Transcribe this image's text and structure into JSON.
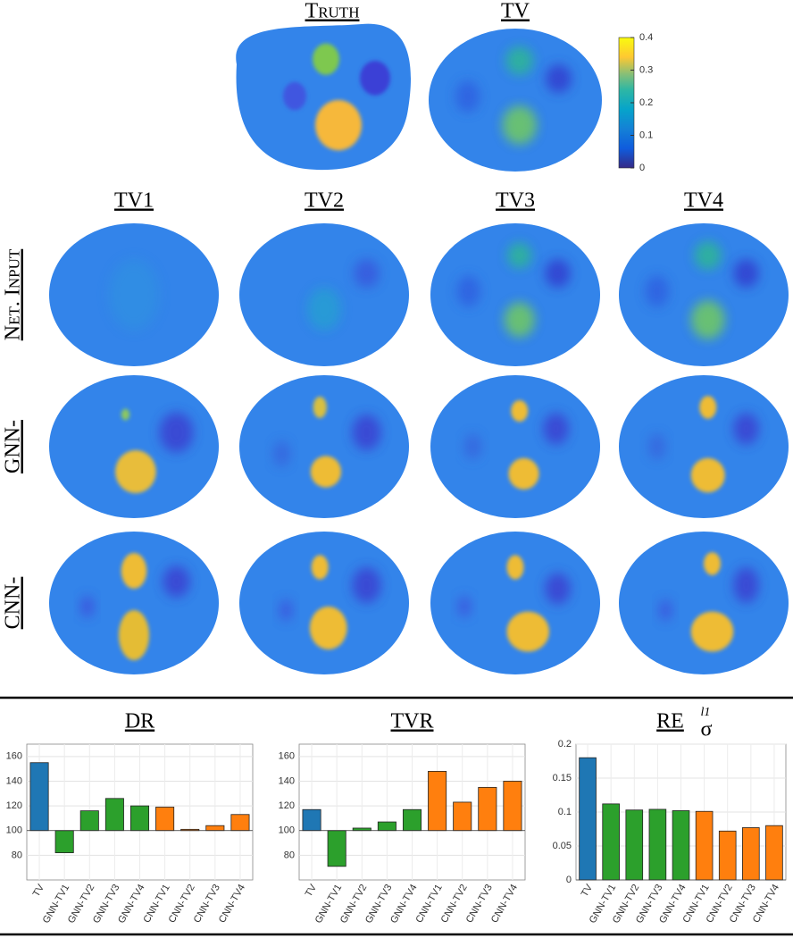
{
  "figure": {
    "top_titles": [
      "Truth",
      "TV"
    ],
    "column_titles": [
      "TV1",
      "TV2",
      "TV3",
      "TV4"
    ],
    "row_labels": [
      "Net. Input",
      "GNN-",
      "CNN-"
    ]
  },
  "colorbar": {
    "lim": [
      0,
      0.4
    ],
    "ticks": [
      0,
      0.1,
      0.2,
      0.3,
      0.4
    ]
  },
  "chart_data": [
    {
      "type": "bar",
      "title": "DR",
      "categories": [
        "TV",
        "GNN-TV1",
        "GNN-TV2",
        "GNN-TV3",
        "GNN-TV4",
        "CNN-TV1",
        "CNN-TV2",
        "CNN-TV3",
        "CNN-TV4"
      ],
      "values": [
        155,
        82,
        116,
        126,
        120,
        119,
        101,
        104,
        113
      ],
      "colors": [
        "#1f77b4",
        "#2ca02c",
        "#2ca02c",
        "#2ca02c",
        "#2ca02c",
        "#ff7f0e",
        "#ff7f0e",
        "#ff7f0e",
        "#ff7f0e"
      ],
      "baseline": 100,
      "ylim": [
        60,
        170
      ],
      "yticks": [
        80,
        100,
        120,
        140,
        160
      ],
      "grid": true
    },
    {
      "type": "bar",
      "title": "TVR",
      "categories": [
        "TV",
        "GNN-TV1",
        "GNN-TV2",
        "GNN-TV3",
        "GNN-TV4",
        "CNN-TV1",
        "CNN-TV2",
        "CNN-TV3",
        "CNN-TV4"
      ],
      "values": [
        117,
        71,
        102,
        107,
        117,
        148,
        123,
        135,
        140
      ],
      "colors": [
        "#1f77b4",
        "#2ca02c",
        "#2ca02c",
        "#2ca02c",
        "#2ca02c",
        "#ff7f0e",
        "#ff7f0e",
        "#ff7f0e",
        "#ff7f0e"
      ],
      "baseline": 100,
      "ylim": [
        60,
        170
      ],
      "yticks": [
        80,
        100,
        120,
        140,
        160
      ],
      "grid": true
    },
    {
      "type": "bar",
      "title": "RE",
      "title_subscript": "σ",
      "title_superscript": "l1",
      "categories": [
        "TV",
        "GNN-TV1",
        "GNN-TV2",
        "GNN-TV3",
        "GNN-TV4",
        "CNN-TV1",
        "CNN-TV2",
        "CNN-TV3",
        "CNN-TV4"
      ],
      "values": [
        0.18,
        0.112,
        0.103,
        0.104,
        0.102,
        0.101,
        0.072,
        0.077,
        0.08
      ],
      "colors": [
        "#1f77b4",
        "#2ca02c",
        "#2ca02c",
        "#2ca02c",
        "#2ca02c",
        "#ff7f0e",
        "#ff7f0e",
        "#ff7f0e",
        "#ff7f0e"
      ],
      "baseline": 0,
      "ylim": [
        0,
        0.2
      ],
      "yticks": [
        0,
        0.05,
        0.1,
        0.15,
        0.2
      ],
      "grid": true
    }
  ]
}
